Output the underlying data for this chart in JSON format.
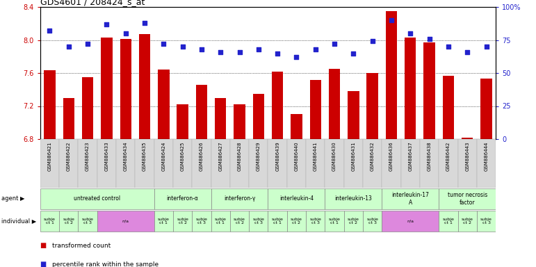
{
  "title": "GDS4601 / 208424_s_at",
  "samples": [
    "GSM886421",
    "GSM886422",
    "GSM886423",
    "GSM886433",
    "GSM886434",
    "GSM886435",
    "GSM886424",
    "GSM886425",
    "GSM886426",
    "GSM886427",
    "GSM886428",
    "GSM886429",
    "GSM886439",
    "GSM886440",
    "GSM886441",
    "GSM886430",
    "GSM886431",
    "GSM886432",
    "GSM886436",
    "GSM886437",
    "GSM886438",
    "GSM886442",
    "GSM886443",
    "GSM886444"
  ],
  "bar_values": [
    7.63,
    7.3,
    7.55,
    8.03,
    8.01,
    8.07,
    7.64,
    7.22,
    7.46,
    7.3,
    7.22,
    7.35,
    7.62,
    7.1,
    7.52,
    7.65,
    7.38,
    7.6,
    8.35,
    8.03,
    7.97,
    7.57,
    6.82,
    7.53
  ],
  "dot_values": [
    82,
    70,
    72,
    87,
    80,
    88,
    72,
    70,
    68,
    66,
    66,
    68,
    65,
    62,
    68,
    72,
    65,
    74,
    90,
    80,
    76,
    70,
    66,
    70
  ],
  "y_min": 6.8,
  "y_max": 8.4,
  "y_ticks": [
    6.8,
    7.2,
    7.6,
    8.0,
    8.4
  ],
  "y_right_ticks": [
    0,
    25,
    50,
    75,
    100
  ],
  "y_right_tick_labels": [
    "0",
    "25",
    "50",
    "75",
    "100%"
  ],
  "bar_color": "#cc0000",
  "dot_color": "#2222cc",
  "bar_bottom": 6.8,
  "agent_groups": [
    {
      "label": "untreated control",
      "start": 0,
      "end": 6,
      "color": "#ccffcc"
    },
    {
      "label": "interferon-α",
      "start": 6,
      "end": 9,
      "color": "#ccffcc"
    },
    {
      "label": "interferon-γ",
      "start": 9,
      "end": 12,
      "color": "#ccffcc"
    },
    {
      "label": "interleukin-4",
      "start": 12,
      "end": 15,
      "color": "#ccffcc"
    },
    {
      "label": "interleukin-13",
      "start": 15,
      "end": 18,
      "color": "#ccffcc"
    },
    {
      "label": "interleukin-17\nA",
      "start": 18,
      "end": 21,
      "color": "#ccffcc"
    },
    {
      "label": "tumor necrosis\nfactor",
      "start": 21,
      "end": 24,
      "color": "#ccffcc"
    }
  ],
  "individual_groups": [
    {
      "label": "subje\nct 1",
      "start": 0,
      "end": 1,
      "color": "#ccffcc"
    },
    {
      "label": "subje\nct 2",
      "start": 1,
      "end": 2,
      "color": "#ccffcc"
    },
    {
      "label": "subje\nct 3",
      "start": 2,
      "end": 3,
      "color": "#ccffcc"
    },
    {
      "label": "n/a",
      "start": 3,
      "end": 6,
      "color": "#dd88dd"
    },
    {
      "label": "subje\nct 1",
      "start": 6,
      "end": 7,
      "color": "#ccffcc"
    },
    {
      "label": "subje\nct 2",
      "start": 7,
      "end": 8,
      "color": "#ccffcc"
    },
    {
      "label": "subje\nct 3",
      "start": 8,
      "end": 9,
      "color": "#ccffcc"
    },
    {
      "label": "subje\nct 1",
      "start": 9,
      "end": 10,
      "color": "#ccffcc"
    },
    {
      "label": "subje\nct 2",
      "start": 10,
      "end": 11,
      "color": "#ccffcc"
    },
    {
      "label": "subje\nct 3",
      "start": 11,
      "end": 12,
      "color": "#ccffcc"
    },
    {
      "label": "subje\nct 1",
      "start": 12,
      "end": 13,
      "color": "#ccffcc"
    },
    {
      "label": "subje\nct 2",
      "start": 13,
      "end": 14,
      "color": "#ccffcc"
    },
    {
      "label": "subje\nct 3",
      "start": 14,
      "end": 15,
      "color": "#ccffcc"
    },
    {
      "label": "subje\nct 1",
      "start": 15,
      "end": 16,
      "color": "#ccffcc"
    },
    {
      "label": "subje\nct 2",
      "start": 16,
      "end": 17,
      "color": "#ccffcc"
    },
    {
      "label": "subje\nct 3",
      "start": 17,
      "end": 18,
      "color": "#ccffcc"
    },
    {
      "label": "n/a",
      "start": 18,
      "end": 21,
      "color": "#dd88dd"
    },
    {
      "label": "subje\nct 1",
      "start": 21,
      "end": 22,
      "color": "#ccffcc"
    },
    {
      "label": "subje\nct 2",
      "start": 22,
      "end": 23,
      "color": "#ccffcc"
    },
    {
      "label": "subje\nct 3",
      "start": 23,
      "end": 24,
      "color": "#ccffcc"
    }
  ],
  "legend_items": [
    {
      "color": "#cc0000",
      "label": "transformed count"
    },
    {
      "color": "#2222cc",
      "label": "percentile rank within the sample"
    }
  ],
  "bg_color": "#ffffff",
  "tick_label_color_left": "#cc0000",
  "tick_label_color_right": "#2222cc"
}
